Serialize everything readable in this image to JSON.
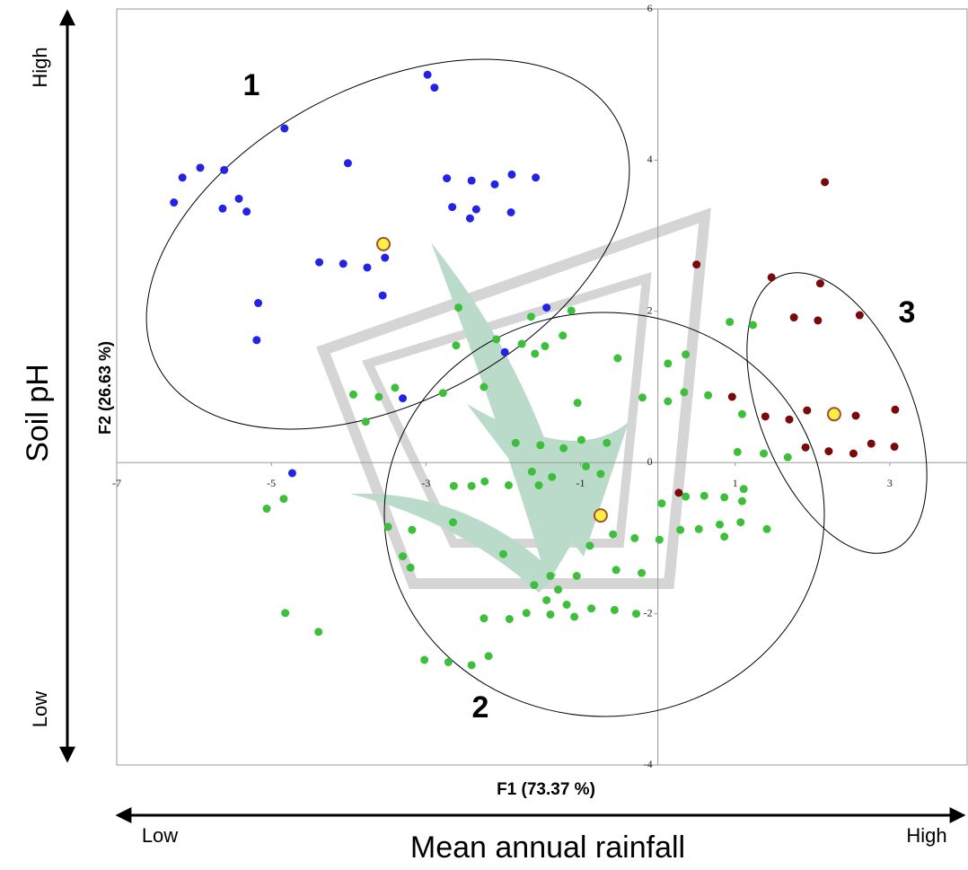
{
  "chart_data": {
    "type": "scatter",
    "x_label": "F1 (73.37 %)",
    "y_label": "F2 (26.63 %)",
    "xlim": [
      -7,
      4
    ],
    "ylim": [
      -4,
      6
    ],
    "xticks": [
      -7,
      -5,
      -3,
      -1,
      1,
      3
    ],
    "yticks": [
      -4,
      -2,
      0,
      2,
      4,
      6
    ],
    "cluster_labels": [
      "1",
      "2",
      "3"
    ],
    "vertical_arrow": {
      "high": "High",
      "low": "Low",
      "title": "Soil pH"
    },
    "horizontal_arrow": {
      "low": "Low",
      "high": "High",
      "title": "Mean annual rainfall"
    },
    "series": [
      {
        "color": "#2323e6",
        "x": [
          -2.98,
          -2.89,
          -4.83,
          -4.01,
          -5.92,
          -6.15,
          -5.61,
          -6.26,
          -5.42,
          -5.63,
          -5.32,
          -2.73,
          -2.41,
          -2.11,
          -1.89,
          -1.58,
          -2.66,
          -2.35,
          -1.9,
          -2.43,
          -4.38,
          -4.07,
          -3.76,
          -3.53,
          -3.56,
          -5.17,
          -5.19,
          -1.44,
          -1.98,
          -3.3,
          -4.73
        ],
        "y": [
          5.13,
          4.96,
          4.42,
          3.96,
          3.9,
          3.77,
          3.87,
          3.44,
          3.49,
          3.36,
          3.32,
          3.76,
          3.73,
          3.68,
          3.81,
          3.77,
          3.38,
          3.35,
          3.31,
          3.23,
          2.65,
          2.63,
          2.58,
          2.71,
          2.21,
          2.11,
          1.62,
          2.05,
          1.46,
          0.85,
          -0.14
        ]
      },
      {
        "color": "#3cc03c",
        "x": [
          -2.58,
          -1.64,
          -1.12,
          -2.09,
          -2.61,
          -1.76,
          -1.59,
          -1.23,
          -1.46,
          0.93,
          1.23,
          0.36,
          -0.52,
          0.13,
          -3.4,
          -3.94,
          -3.61,
          -2.78,
          -2.25,
          -3.78,
          -1.04,
          -0.2,
          0.13,
          0.34,
          0.65,
          1.09,
          -1.84,
          -1.52,
          -1.22,
          -0.99,
          -0.66,
          1.03,
          1.37,
          1.68,
          -1.63,
          -1.37,
          -1.54,
          -0.93,
          -0.74,
          -2.24,
          -1.93,
          -2.64,
          -2.41,
          -4.84,
          -5.06,
          0.05,
          0.36,
          0.6,
          1.11,
          1.09,
          0.86,
          -3.49,
          -3.18,
          -2.65,
          0.8,
          1.07,
          1.41,
          0.29,
          0.53,
          0.86,
          -0.58,
          -0.3,
          0.02,
          -3.3,
          -3.2,
          -0.88,
          -2.0,
          -1.39,
          -1.05,
          -0.54,
          -0.21,
          -1.6,
          -1.29,
          -1.44,
          -4.82,
          -4.39,
          -2.25,
          -1.92,
          -1.7,
          -1.39,
          -1.18,
          -1.08,
          -0.86,
          -0.56,
          -0.28,
          -3.02,
          -2.71,
          -2.41,
          -2.19
        ],
        "y": [
          2.05,
          1.93,
          2.01,
          1.63,
          1.55,
          1.57,
          1.44,
          1.68,
          1.54,
          1.86,
          1.82,
          1.43,
          1.38,
          1.31,
          0.99,
          0.9,
          0.87,
          0.92,
          1.0,
          0.54,
          0.79,
          0.86,
          0.81,
          0.93,
          0.89,
          0.64,
          0.26,
          0.23,
          0.19,
          0.3,
          0.26,
          0.14,
          0.12,
          0.07,
          -0.12,
          -0.19,
          -0.3,
          -0.05,
          -0.15,
          -0.25,
          -0.3,
          -0.31,
          -0.31,
          -0.48,
          -0.61,
          -0.54,
          -0.45,
          -0.44,
          -0.35,
          -0.51,
          -0.46,
          -0.85,
          -0.89,
          -0.79,
          -0.82,
          -0.79,
          -0.88,
          -0.89,
          -0.88,
          -0.98,
          -0.95,
          -1.0,
          -1.02,
          -1.24,
          -1.39,
          -1.1,
          -1.21,
          -1.5,
          -1.5,
          -1.42,
          -1.46,
          -1.62,
          -1.68,
          -1.82,
          -1.99,
          -2.24,
          -2.06,
          -2.07,
          -1.99,
          -2.01,
          -1.88,
          -2.04,
          -1.93,
          -1.95,
          -2.0,
          -2.61,
          -2.64,
          -2.68,
          -2.56
        ]
      },
      {
        "color": "#7a0a0a",
        "x": [
          2.16,
          0.5,
          1.47,
          2.1,
          1.76,
          2.07,
          2.61,
          0.96,
          1.39,
          1.7,
          1.93,
          2.56,
          3.07,
          1.91,
          2.21,
          2.53,
          2.76,
          3.06,
          0.27
        ],
        "y": [
          3.71,
          2.62,
          2.45,
          2.37,
          1.92,
          1.88,
          1.95,
          0.87,
          0.61,
          0.57,
          0.69,
          0.62,
          0.7,
          0.2,
          0.15,
          0.12,
          0.25,
          0.21,
          -0.4
        ]
      },
      {
        "color": "#ffee44",
        "edgecolor": "#a0522d",
        "x": [
          -3.55,
          -0.74,
          2.28
        ],
        "y": [
          2.89,
          -0.7,
          0.64
        ]
      }
    ]
  }
}
